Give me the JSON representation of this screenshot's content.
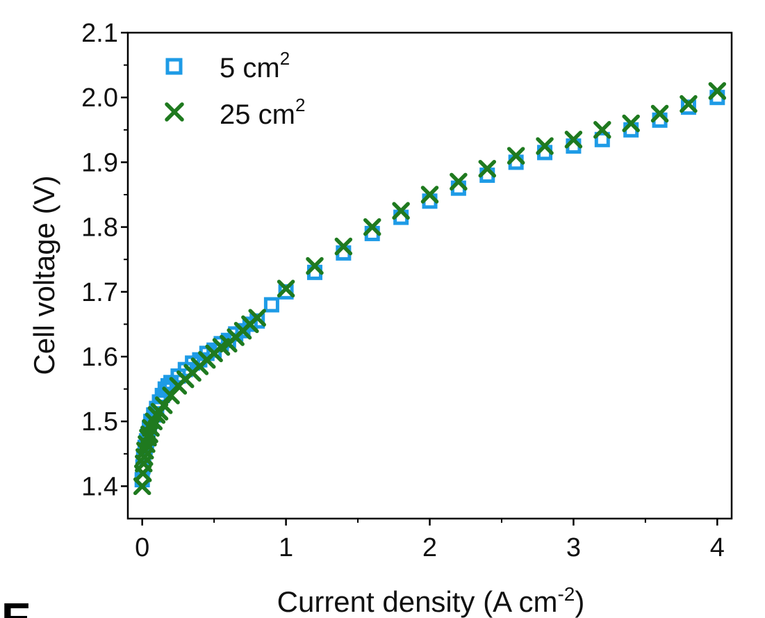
{
  "panel_label": "E",
  "colors": {
    "series_5cm2": "#1e9be6",
    "series_25cm2": "#1f7a1f"
  },
  "chart_data": {
    "type": "scatter",
    "xlabel": {
      "main": "Current density (A cm",
      "sup": "-2",
      "tail": ")"
    },
    "ylabel": "Cell voltage (V)",
    "xlim": [
      -0.1,
      4.1
    ],
    "ylim": [
      1.35,
      2.1
    ],
    "xticks": [
      "0",
      "1",
      "2",
      "3",
      "4"
    ],
    "yticks": [
      "1.4",
      "1.5",
      "1.6",
      "1.7",
      "1.8",
      "1.9",
      "2.0",
      "2.1"
    ],
    "legend_position": "top-left",
    "series": [
      {
        "name": "5 cm",
        "name_sup": "2",
        "marker": "square",
        "color": "#1e9be6",
        "x": [
          0.0,
          0.005,
          0.01,
          0.02,
          0.03,
          0.04,
          0.05,
          0.06,
          0.08,
          0.1,
          0.12,
          0.14,
          0.16,
          0.18,
          0.2,
          0.25,
          0.3,
          0.35,
          0.4,
          0.45,
          0.5,
          0.55,
          0.6,
          0.65,
          0.7,
          0.75,
          0.8,
          0.9,
          1.0,
          1.2,
          1.4,
          1.6,
          1.8,
          2.0,
          2.2,
          2.4,
          2.6,
          2.8,
          3.0,
          3.2,
          3.4,
          3.6,
          3.8,
          4.0
        ],
        "y": [
          1.41,
          1.43,
          1.445,
          1.46,
          1.47,
          1.48,
          1.49,
          1.5,
          1.51,
          1.52,
          1.53,
          1.54,
          1.55,
          1.555,
          1.56,
          1.57,
          1.58,
          1.59,
          1.595,
          1.605,
          1.61,
          1.62,
          1.625,
          1.635,
          1.64,
          1.65,
          1.655,
          1.68,
          1.7,
          1.73,
          1.76,
          1.79,
          1.815,
          1.84,
          1.86,
          1.88,
          1.9,
          1.915,
          1.925,
          1.935,
          1.95,
          1.965,
          1.985,
          2.0
        ]
      },
      {
        "name": "25 cm",
        "name_sup": "2",
        "marker": "x",
        "color": "#1f7a1f",
        "x": [
          0.0,
          0.005,
          0.01,
          0.015,
          0.02,
          0.03,
          0.04,
          0.05,
          0.06,
          0.08,
          0.1,
          0.12,
          0.15,
          0.2,
          0.25,
          0.3,
          0.35,
          0.4,
          0.45,
          0.5,
          0.55,
          0.6,
          0.65,
          0.7,
          0.75,
          0.8,
          1.0,
          1.2,
          1.4,
          1.6,
          1.8,
          2.0,
          2.2,
          2.4,
          2.6,
          2.8,
          3.0,
          3.2,
          3.4,
          3.6,
          3.8,
          4.0
        ],
        "y": [
          1.4,
          1.42,
          1.435,
          1.445,
          1.455,
          1.465,
          1.475,
          1.48,
          1.49,
          1.5,
          1.51,
          1.515,
          1.525,
          1.54,
          1.555,
          1.565,
          1.575,
          1.585,
          1.595,
          1.605,
          1.615,
          1.62,
          1.63,
          1.64,
          1.65,
          1.66,
          1.705,
          1.74,
          1.77,
          1.8,
          1.825,
          1.85,
          1.87,
          1.89,
          1.91,
          1.925,
          1.935,
          1.95,
          1.96,
          1.975,
          1.99,
          2.01
        ]
      }
    ]
  }
}
